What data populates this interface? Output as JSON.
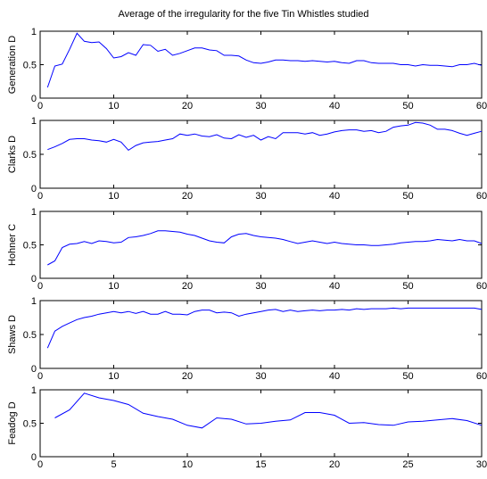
{
  "figure": {
    "title": "Average of the irregularity for the five Tin Whistles studied",
    "colors": {
      "line": "#0000ff",
      "axes": "#000000",
      "background": "#ffffff"
    }
  },
  "chart_data": [
    {
      "type": "line",
      "ylabel": "Generation D",
      "xlim": [
        0,
        60
      ],
      "ylim": [
        0,
        1
      ],
      "xticks": [
        0,
        10,
        20,
        30,
        40,
        50,
        60
      ],
      "yticks": [
        0,
        0.5,
        1
      ],
      "ytick_labels": [
        "0",
        "0.5",
        "1"
      ],
      "grid": false,
      "series": [
        {
          "x": [
            1,
            2,
            3,
            4,
            5,
            6,
            7,
            8,
            9,
            10,
            11,
            12,
            13,
            14,
            15,
            16,
            17,
            18,
            19,
            20,
            21,
            22,
            23,
            24,
            25,
            26,
            27,
            28,
            29,
            30,
            31,
            32,
            33,
            34,
            35,
            36,
            37,
            38,
            39,
            40,
            41,
            42,
            43,
            44,
            45,
            46,
            47,
            48,
            49,
            50,
            51,
            52,
            53,
            54,
            55,
            56,
            57,
            58,
            59,
            60
          ],
          "y": [
            0.16,
            0.48,
            0.51,
            0.73,
            0.97,
            0.85,
            0.83,
            0.84,
            0.74,
            0.6,
            0.62,
            0.68,
            0.64,
            0.8,
            0.79,
            0.7,
            0.73,
            0.64,
            0.67,
            0.71,
            0.75,
            0.75,
            0.72,
            0.71,
            0.64,
            0.64,
            0.63,
            0.57,
            0.53,
            0.52,
            0.54,
            0.57,
            0.57,
            0.56,
            0.56,
            0.55,
            0.56,
            0.55,
            0.54,
            0.55,
            0.53,
            0.52,
            0.56,
            0.56,
            0.53,
            0.52,
            0.52,
            0.52,
            0.5,
            0.5,
            0.48,
            0.5,
            0.49,
            0.49,
            0.48,
            0.47,
            0.5,
            0.5,
            0.52,
            0.49
          ]
        }
      ]
    },
    {
      "type": "line",
      "ylabel": "Clarks D",
      "xlim": [
        0,
        60
      ],
      "ylim": [
        0,
        1
      ],
      "xticks": [
        0,
        10,
        20,
        30,
        40,
        50,
        60
      ],
      "yticks": [
        0,
        0.5,
        1
      ],
      "ytick_labels": [
        "0",
        "0.5",
        "1"
      ],
      "grid": false,
      "series": [
        {
          "x": [
            1,
            2,
            3,
            4,
            5,
            6,
            7,
            8,
            9,
            10,
            11,
            12,
            13,
            14,
            15,
            16,
            17,
            18,
            19,
            20,
            21,
            22,
            23,
            24,
            25,
            26,
            27,
            28,
            29,
            30,
            31,
            32,
            33,
            34,
            35,
            36,
            37,
            38,
            39,
            40,
            41,
            42,
            43,
            44,
            45,
            46,
            47,
            48,
            49,
            50,
            51,
            52,
            53,
            54,
            55,
            56,
            57,
            58,
            59,
            60
          ],
          "y": [
            0.57,
            0.61,
            0.66,
            0.72,
            0.73,
            0.73,
            0.71,
            0.7,
            0.68,
            0.72,
            0.68,
            0.56,
            0.63,
            0.67,
            0.68,
            0.69,
            0.71,
            0.73,
            0.8,
            0.78,
            0.8,
            0.77,
            0.76,
            0.79,
            0.74,
            0.73,
            0.79,
            0.75,
            0.78,
            0.71,
            0.76,
            0.73,
            0.82,
            0.82,
            0.82,
            0.8,
            0.82,
            0.78,
            0.8,
            0.83,
            0.85,
            0.86,
            0.86,
            0.84,
            0.85,
            0.82,
            0.84,
            0.9,
            0.92,
            0.93,
            0.97,
            0.96,
            0.93,
            0.87,
            0.87,
            0.85,
            0.81,
            0.78,
            0.81,
            0.84
          ]
        }
      ]
    },
    {
      "type": "line",
      "ylabel": "Hohner C",
      "xlim": [
        0,
        60
      ],
      "ylim": [
        0,
        1
      ],
      "xticks": [
        0,
        10,
        20,
        30,
        40,
        50,
        60
      ],
      "yticks": [
        0,
        0.5,
        1
      ],
      "ytick_labels": [
        "0",
        "0.5",
        "1"
      ],
      "grid": false,
      "series": [
        {
          "x": [
            1,
            2,
            3,
            4,
            5,
            6,
            7,
            8,
            9,
            10,
            11,
            12,
            13,
            14,
            15,
            16,
            17,
            18,
            19,
            20,
            21,
            22,
            23,
            24,
            25,
            26,
            27,
            28,
            29,
            30,
            31,
            32,
            33,
            34,
            35,
            36,
            37,
            38,
            39,
            40,
            41,
            42,
            43,
            44,
            45,
            46,
            47,
            48,
            49,
            50,
            51,
            52,
            53,
            54,
            55,
            56,
            57,
            58,
            59,
            60
          ],
          "y": [
            0.2,
            0.26,
            0.46,
            0.51,
            0.52,
            0.55,
            0.52,
            0.56,
            0.55,
            0.53,
            0.54,
            0.61,
            0.62,
            0.64,
            0.67,
            0.71,
            0.71,
            0.7,
            0.69,
            0.66,
            0.64,
            0.6,
            0.56,
            0.54,
            0.53,
            0.62,
            0.66,
            0.67,
            0.64,
            0.62,
            0.61,
            0.6,
            0.58,
            0.55,
            0.52,
            0.54,
            0.56,
            0.54,
            0.52,
            0.54,
            0.52,
            0.51,
            0.5,
            0.5,
            0.49,
            0.49,
            0.5,
            0.51,
            0.53,
            0.54,
            0.55,
            0.55,
            0.56,
            0.58,
            0.57,
            0.56,
            0.58,
            0.56,
            0.56,
            0.52
          ]
        }
      ]
    },
    {
      "type": "line",
      "ylabel": "Shaws D",
      "xlim": [
        0,
        60
      ],
      "ylim": [
        0,
        1
      ],
      "xticks": [
        0,
        10,
        20,
        30,
        40,
        50,
        60
      ],
      "yticks": [
        0,
        0.5,
        1
      ],
      "ytick_labels": [
        "0",
        "0.5",
        "1"
      ],
      "grid": false,
      "series": [
        {
          "x": [
            1,
            2,
            3,
            4,
            5,
            6,
            7,
            8,
            9,
            10,
            11,
            12,
            13,
            14,
            15,
            16,
            17,
            18,
            19,
            20,
            21,
            22,
            23,
            24,
            25,
            26,
            27,
            28,
            29,
            30,
            31,
            32,
            33,
            34,
            35,
            36,
            37,
            38,
            39,
            40,
            41,
            42,
            43,
            44,
            45,
            46,
            47,
            48,
            49,
            50,
            51,
            52,
            53,
            54,
            55,
            56,
            57,
            58,
            59,
            60
          ],
          "y": [
            0.3,
            0.55,
            0.62,
            0.67,
            0.72,
            0.75,
            0.77,
            0.8,
            0.82,
            0.84,
            0.82,
            0.84,
            0.81,
            0.84,
            0.8,
            0.8,
            0.84,
            0.8,
            0.8,
            0.79,
            0.84,
            0.86,
            0.86,
            0.82,
            0.83,
            0.82,
            0.77,
            0.8,
            0.82,
            0.84,
            0.86,
            0.87,
            0.84,
            0.86,
            0.84,
            0.85,
            0.86,
            0.85,
            0.86,
            0.86,
            0.87,
            0.86,
            0.88,
            0.87,
            0.88,
            0.88,
            0.88,
            0.89,
            0.88,
            0.89,
            0.89,
            0.89,
            0.89,
            0.89,
            0.89,
            0.89,
            0.89,
            0.89,
            0.89,
            0.87
          ]
        }
      ]
    },
    {
      "type": "line",
      "ylabel": "Feadog D",
      "xlim": [
        0,
        30
      ],
      "ylim": [
        0,
        1
      ],
      "xticks": [
        0,
        5,
        10,
        15,
        20,
        25,
        30
      ],
      "yticks": [
        0,
        0.5,
        1
      ],
      "ytick_labels": [
        "0",
        "0.5",
        "1"
      ],
      "grid": false,
      "series": [
        {
          "x": [
            1,
            2,
            3,
            4,
            5,
            6,
            7,
            8,
            9,
            10,
            11,
            12,
            13,
            14,
            15,
            16,
            17,
            18,
            19,
            20,
            21,
            22,
            23,
            24,
            25,
            26,
            27,
            28,
            29,
            30
          ],
          "y": [
            0.58,
            0.7,
            0.95,
            0.88,
            0.84,
            0.78,
            0.65,
            0.6,
            0.56,
            0.47,
            0.43,
            0.58,
            0.56,
            0.49,
            0.5,
            0.53,
            0.55,
            0.66,
            0.66,
            0.62,
            0.5,
            0.51,
            0.48,
            0.47,
            0.52,
            0.53,
            0.55,
            0.57,
            0.54,
            0.47
          ]
        }
      ]
    }
  ]
}
